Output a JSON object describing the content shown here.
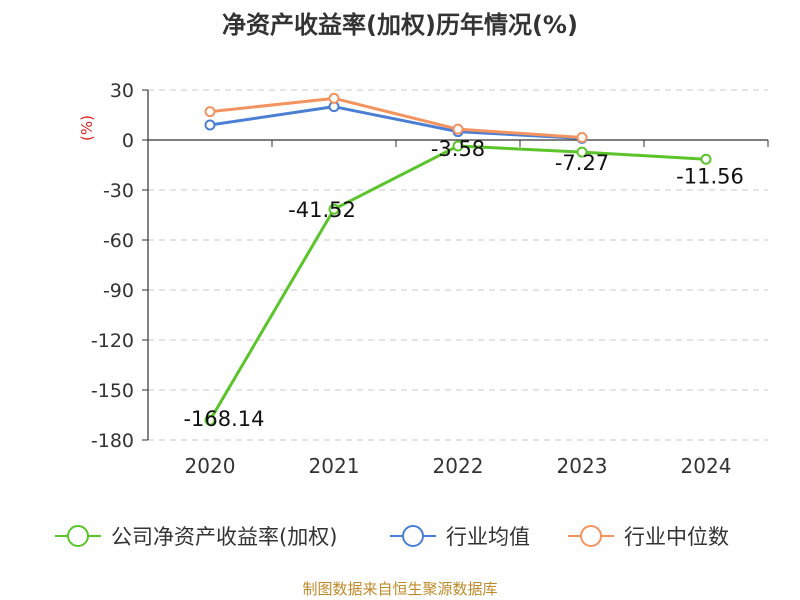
{
  "chart_data": {
    "type": "line",
    "title": "净资产收益率(加权)历年情况(%)",
    "ylabel": "(%)",
    "xlabel": "",
    "categories": [
      "2020",
      "2021",
      "2022",
      "2023",
      "2024"
    ],
    "ylim": [
      -180,
      30
    ],
    "yticks": [
      30,
      0,
      -30,
      -60,
      -90,
      -120,
      -150,
      -180
    ],
    "grid": true,
    "series": [
      {
        "name": "公司净资产收益率(加权)",
        "color": "#5bc42a",
        "values": [
          -168.14,
          -41.52,
          -3.58,
          -7.27,
          -11.56
        ],
        "labels": [
          "-168.14",
          "-41.52",
          "-3.58",
          "-7.27",
          "-11.56"
        ]
      },
      {
        "name": "行业均值",
        "color": "#4a7fd4",
        "values": [
          9,
          20,
          5,
          1,
          null
        ]
      },
      {
        "name": "行业中位数",
        "color": "#f39460",
        "values": [
          17,
          25,
          6.5,
          1.5,
          null
        ]
      }
    ],
    "source": "制图数据来自恒生聚源数据库",
    "unit_color": "#e02020",
    "source_color": "#c08a2a"
  }
}
